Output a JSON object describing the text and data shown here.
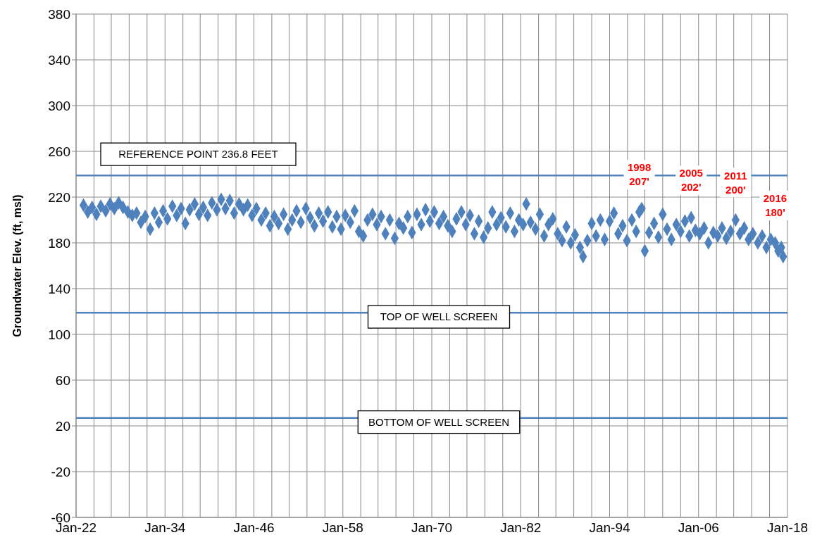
{
  "chart_data": {
    "type": "scatter",
    "ylabel": "Groundwater Elev. (ft, msl)",
    "marker": "diamond",
    "grid": true,
    "xlim": [
      "1922-01",
      "2018-01"
    ],
    "ylim": [
      -60,
      380
    ],
    "yticks": [
      -60,
      -20,
      20,
      60,
      100,
      140,
      180,
      220,
      260,
      300,
      340,
      380
    ],
    "xticks": [
      {
        "value": "1922-01",
        "label": "Jan-22"
      },
      {
        "value": "1924-06",
        "label": null
      },
      {
        "value": "1926-10",
        "label": null
      },
      {
        "value": "1929-03",
        "label": null
      },
      {
        "value": "1931-08",
        "label": null
      },
      {
        "value": "1934-01",
        "label": "Jan-34"
      },
      {
        "value": "1936-06",
        "label": null
      },
      {
        "value": "1938-10",
        "label": null
      },
      {
        "value": "1941-03",
        "label": null
      },
      {
        "value": "1943-08",
        "label": null
      },
      {
        "value": "1946-01",
        "label": "Jan-46"
      },
      {
        "value": "1948-06",
        "label": null
      },
      {
        "value": "1950-10",
        "label": null
      },
      {
        "value": "1953-03",
        "label": null
      },
      {
        "value": "1955-08",
        "label": null
      },
      {
        "value": "1958-01",
        "label": "Jan-58"
      },
      {
        "value": "1960-06",
        "label": null
      },
      {
        "value": "1962-10",
        "label": null
      },
      {
        "value": "1965-03",
        "label": null
      },
      {
        "value": "1967-08",
        "label": null
      },
      {
        "value": "1970-01",
        "label": "Jan-70"
      },
      {
        "value": "1972-06",
        "label": null
      },
      {
        "value": "1974-10",
        "label": null
      },
      {
        "value": "1977-03",
        "label": null
      },
      {
        "value": "1979-08",
        "label": null
      },
      {
        "value": "1982-01",
        "label": "Jan-82"
      },
      {
        "value": "1984-06",
        "label": null
      },
      {
        "value": "1986-10",
        "label": null
      },
      {
        "value": "1989-03",
        "label": null
      },
      {
        "value": "1991-08",
        "label": null
      },
      {
        "value": "1994-01",
        "label": "Jan-94"
      },
      {
        "value": "1996-06",
        "label": null
      },
      {
        "value": "1998-10",
        "label": null
      },
      {
        "value": "2001-03",
        "label": null
      },
      {
        "value": "2003-08",
        "label": null
      },
      {
        "value": "2006-01",
        "label": "Jan-06"
      },
      {
        "value": "2008-06",
        "label": null
      },
      {
        "value": "2010-10",
        "label": null
      },
      {
        "value": "2013-03",
        "label": null
      },
      {
        "value": "2015-08",
        "label": null
      },
      {
        "value": "2018-01",
        "label": "Jan-18"
      }
    ],
    "x": [
      "1923-01",
      "1923-08",
      "1924-03",
      "1924-10",
      "1925-05",
      "1926-01",
      "1926-08",
      "1927-03",
      "1927-10",
      "1928-05",
      "1929-01",
      "1929-08",
      "1930-03",
      "1930-10",
      "1931-05",
      "1932-01",
      "1932-08",
      "1933-03",
      "1933-10",
      "1934-05",
      "1935-01",
      "1935-08",
      "1936-03",
      "1936-10",
      "1937-05",
      "1938-01",
      "1938-08",
      "1939-03",
      "1939-10",
      "1940-05",
      "1941-01",
      "1941-08",
      "1942-03",
      "1942-10",
      "1943-05",
      "1944-01",
      "1944-08",
      "1945-03",
      "1945-10",
      "1946-05",
      "1947-01",
      "1947-08",
      "1948-03",
      "1948-10",
      "1949-05",
      "1950-01",
      "1950-08",
      "1951-03",
      "1951-10",
      "1952-05",
      "1953-01",
      "1953-08",
      "1954-03",
      "1954-10",
      "1955-05",
      "1956-01",
      "1956-08",
      "1957-03",
      "1957-10",
      "1958-05",
      "1959-01",
      "1959-08",
      "1960-03",
      "1960-10",
      "1961-05",
      "1962-01",
      "1962-08",
      "1963-03",
      "1963-10",
      "1964-05",
      "1965-01",
      "1965-08",
      "1966-03",
      "1966-10",
      "1967-05",
      "1968-01",
      "1968-08",
      "1969-03",
      "1969-10",
      "1970-05",
      "1971-01",
      "1971-08",
      "1972-03",
      "1972-10",
      "1973-05",
      "1974-01",
      "1974-08",
      "1975-03",
      "1975-10",
      "1976-05",
      "1977-01",
      "1977-08",
      "1978-03",
      "1978-10",
      "1979-05",
      "1980-01",
      "1980-08",
      "1981-03",
      "1981-10",
      "1982-05",
      "1982-10",
      "1983-05",
      "1984-01",
      "1984-08",
      "1985-03",
      "1985-10",
      "1986-05",
      "1987-01",
      "1987-08",
      "1988-03",
      "1988-10",
      "1989-05",
      "1990-01",
      "1990-06",
      "1991-01",
      "1991-08",
      "1992-03",
      "1992-10",
      "1993-05",
      "1994-01",
      "1994-08",
      "1995-03",
      "1995-10",
      "1996-05",
      "1997-01",
      "1997-08",
      "1998-01",
      "1998-05",
      "1998-10",
      "1999-05",
      "2000-01",
      "2000-08",
      "2001-03",
      "2001-10",
      "2002-05",
      "2003-01",
      "2003-08",
      "2004-03",
      "2004-10",
      "2005-01",
      "2005-08",
      "2006-03",
      "2006-10",
      "2007-05",
      "2008-01",
      "2008-08",
      "2009-03",
      "2009-10",
      "2010-05",
      "2011-01",
      "2011-08",
      "2012-03",
      "2012-10",
      "2013-05",
      "2014-01",
      "2014-08",
      "2015-03",
      "2015-10",
      "2016-05",
      "2016-10",
      "2017-03",
      "2017-06"
    ],
    "series": [
      {
        "color": "#4f81bd",
        "values": [
          213,
          207,
          211,
          205,
          212,
          208,
          214,
          210,
          215,
          211,
          207,
          204,
          206,
          198,
          203,
          192,
          206,
          198,
          208,
          201,
          212,
          204,
          210,
          197,
          209,
          214,
          205,
          211,
          204,
          215,
          209,
          218,
          210,
          217,
          206,
          214,
          209,
          213,
          204,
          210,
          200,
          206,
          195,
          203,
          197,
          205,
          192,
          200,
          208,
          198,
          210,
          202,
          195,
          206,
          199,
          207,
          194,
          203,
          192,
          204,
          198,
          208,
          190,
          186,
          200,
          205,
          196,
          203,
          188,
          200,
          184,
          197,
          193,
          203,
          189,
          205,
          196,
          209,
          199,
          207,
          197,
          203,
          195,
          190,
          201,
          207,
          196,
          204,
          188,
          199,
          185,
          193,
          207,
          196,
          202,
          194,
          206,
          190,
          200,
          196,
          214,
          198,
          192,
          205,
          186,
          196,
          201,
          188,
          182,
          194,
          180,
          187,
          176,
          168,
          182,
          197,
          186,
          200,
          183,
          199,
          206,
          188,
          195,
          182,
          200,
          190,
          207,
          210,
          173,
          189,
          197,
          185,
          205,
          192,
          183,
          196,
          190,
          199,
          186,
          202,
          191,
          188,
          193,
          180,
          189,
          186,
          193,
          184,
          190,
          200,
          188,
          193,
          183,
          188,
          180,
          186,
          176,
          183,
          180,
          173,
          176,
          168
        ]
      }
    ],
    "ref_lines": [
      {
        "axis": "y",
        "value": 239,
        "label": "REFERENCE POINT 236.8 FEET",
        "color": "#4f81bd"
      },
      {
        "axis": "y",
        "value": 119,
        "label": "TOP OF WELL SCREEN",
        "color": "#4f81bd"
      },
      {
        "axis": "y",
        "value": 27,
        "label": "BOTTOM OF WELL SCREEN",
        "color": "#4f81bd"
      }
    ],
    "annotations": [
      {
        "text": "1998\n207'",
        "x": "1998-01",
        "y": 207
      },
      {
        "text": "2005\n202'",
        "x": "2005-01",
        "y": 202
      },
      {
        "text": "2011\n200'",
        "x": "2011-01",
        "y": 200
      },
      {
        "text": "2016\n180'",
        "x": "2016-05",
        "y": 180
      }
    ]
  }
}
